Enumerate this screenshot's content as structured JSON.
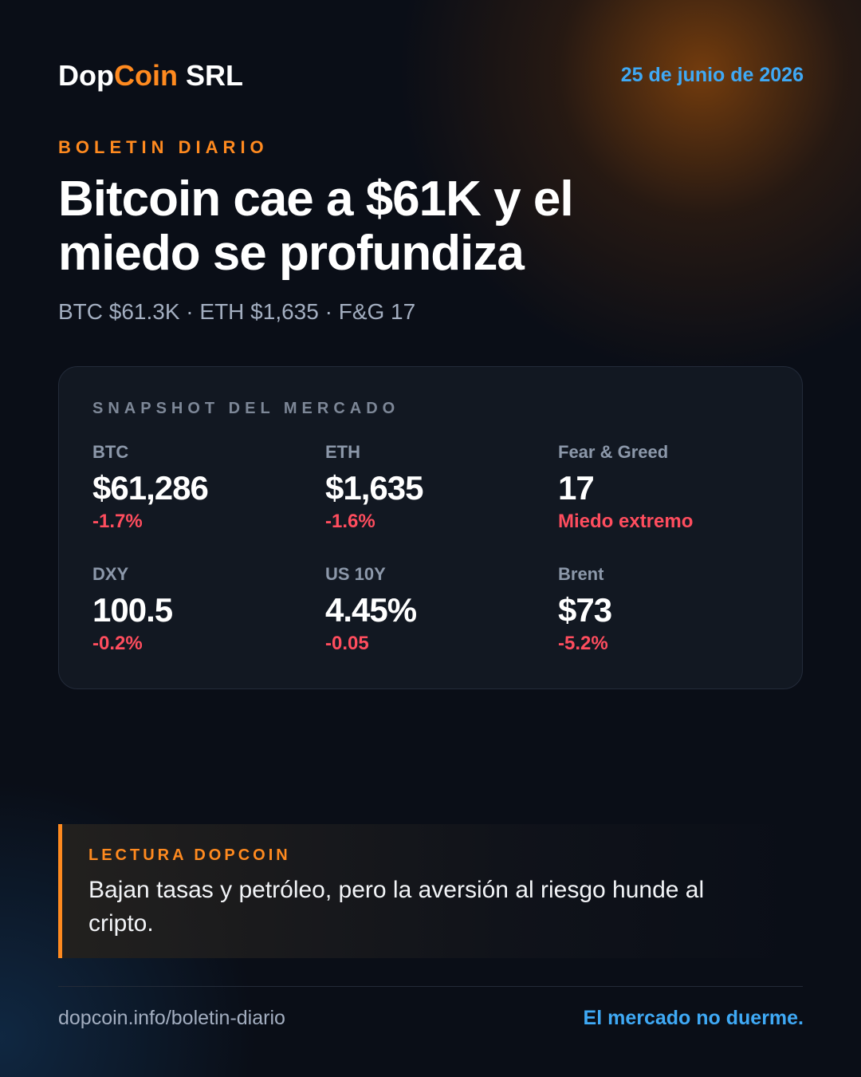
{
  "header": {
    "brand": [
      "Dop",
      "Coin",
      " SRL"
    ],
    "date": "25 de junio de 2026"
  },
  "kicker": "BOLETIN DIARIO",
  "title": "Bitcoin cae a $61K y el miedo se profundiza",
  "subtitle": "BTC $61.3K · ETH $1,635 · F&G 17",
  "snapshot": {
    "heading": "SNAPSHOT DEL MERCADO",
    "metrics": [
      {
        "label": "BTC",
        "value": "$61,286",
        "change": "-1.7%"
      },
      {
        "label": "ETH",
        "value": "$1,635",
        "change": "-1.6%"
      },
      {
        "label": "Fear & Greed",
        "value": "17",
        "change": "Miedo extremo"
      },
      {
        "label": "DXY",
        "value": "100.5",
        "change": "-0.2%"
      },
      {
        "label": "US 10Y",
        "value": "4.45%",
        "change": "-0.05"
      },
      {
        "label": "Brent",
        "value": "$73",
        "change": "-5.2%"
      }
    ]
  },
  "reading": {
    "heading": "LECTURA DOPCOIN",
    "text": "Bajan tasas y petróleo, pero la aversión al riesgo hunde al cripto."
  },
  "footer": {
    "url": "dopcoin.info/boletin-diario",
    "tagline": "El mercado no duerme."
  }
}
